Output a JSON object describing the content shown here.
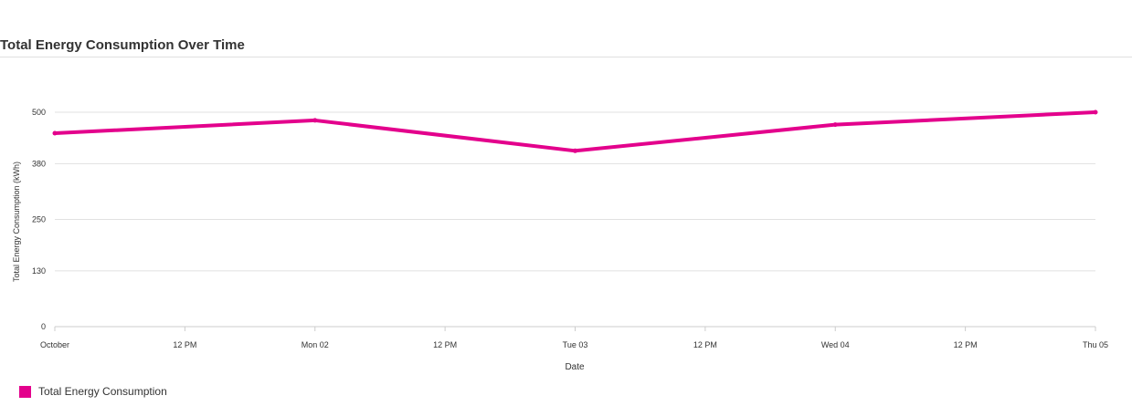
{
  "chart_data": {
    "type": "line",
    "title": "Total Energy Consumption Over Time",
    "xlabel": "Date",
    "ylabel": "Total Energy Consumption (kWh)",
    "x_tick_labels": [
      "October",
      "12 PM",
      "Mon 02",
      "12 PM",
      "Tue 03",
      "12 PM",
      "Wed 04",
      "12 PM",
      "Thu 05"
    ],
    "y_ticks": [
      0,
      130,
      250,
      380,
      500
    ],
    "ylim": [
      0,
      520
    ],
    "grid": true,
    "legend_position": "bottom-left",
    "series": [
      {
        "name": "Total Energy Consumption",
        "color": "#E3008C",
        "x": [
          "2023-10-01",
          "2023-10-02",
          "2023-10-03",
          "2023-10-04",
          "2023-10-05"
        ],
        "values": [
          451,
          481,
          410,
          471,
          500
        ]
      }
    ]
  }
}
